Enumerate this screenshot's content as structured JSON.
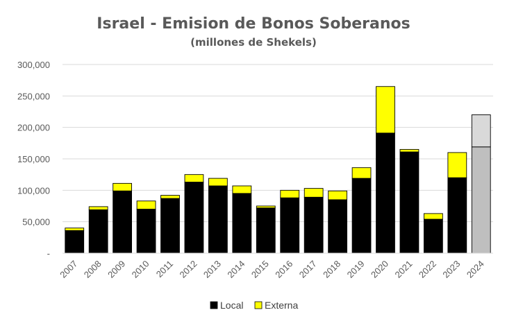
{
  "chart_data": {
    "type": "bar",
    "stacked": true,
    "title": "Israel - Emision de Bonos Soberanos",
    "subtitle": "(millones de Shekels)",
    "categories": [
      "2007",
      "2008",
      "2009",
      "2010",
      "2011",
      "2012",
      "2013",
      "2014",
      "2015",
      "2016",
      "2017",
      "2018",
      "2019",
      "2020",
      "2021",
      "2022",
      "2023",
      "2024"
    ],
    "series": [
      {
        "name": "Local",
        "color": "#000000",
        "values": [
          36000,
          69000,
          99000,
          70000,
          87000,
          113000,
          107000,
          95000,
          72000,
          88000,
          89000,
          85000,
          119000,
          191000,
          161000,
          54000,
          120000,
          169000
        ]
      },
      {
        "name": "Externa",
        "color": "#FFFF00",
        "values": [
          4000,
          5000,
          12000,
          13000,
          5000,
          12000,
          12000,
          12000,
          3000,
          12000,
          14000,
          14000,
          17000,
          74000,
          4000,
          9000,
          40000,
          51000
        ]
      }
    ],
    "highlight": {
      "category": "2024",
      "colors": {
        "Local": "#BFBFBF",
        "Externa": "#D9D9D9"
      }
    },
    "yticks": [
      "-",
      "50,000",
      "100,000",
      "150,000",
      "200,000",
      "250,000",
      "300,000"
    ],
    "ylim": [
      0,
      300000
    ],
    "grid": true,
    "legend_position": "bottom"
  }
}
